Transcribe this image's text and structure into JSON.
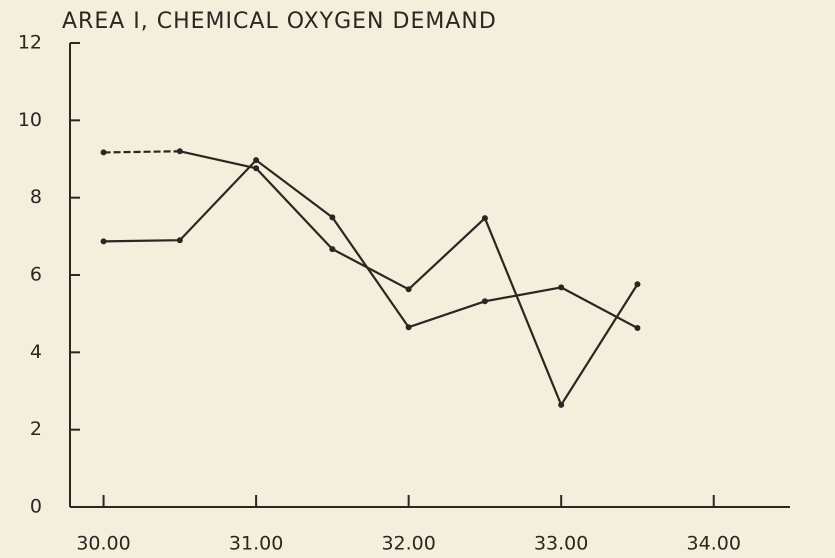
{
  "chart_data": {
    "type": "line",
    "title": "AREA I, CHEMICAL OXYGEN DEMAND",
    "x": [
      30,
      30.5,
      31,
      31.5,
      32,
      32.5,
      33,
      33.5
    ],
    "series": [
      {
        "color": "#2a2622",
        "values": [
          9.17,
          9.2,
          8.76,
          6.67,
          5.63,
          7.47,
          2.64,
          5.76
        ],
        "dashed_x": [
          30,
          30.5
        ]
      },
      {
        "color": "#2a2622",
        "values": [
          6.87,
          6.9,
          8.97,
          7.49,
          4.65,
          5.32,
          5.68,
          4.63
        ]
      }
    ],
    "xlim": [
      29.78,
      34.5
    ],
    "xticks": [
      {
        "value": 30,
        "label": "30.00"
      },
      {
        "value": 31,
        "label": "31.00"
      },
      {
        "value": 32,
        "label": "32.00"
      },
      {
        "value": 33,
        "label": "33.00"
      },
      {
        "value": 34,
        "label": "34.00"
      }
    ],
    "ylim": [
      0,
      12
    ],
    "yticks": [
      0,
      2,
      4,
      6,
      8,
      10,
      12
    ],
    "grid": false
  }
}
